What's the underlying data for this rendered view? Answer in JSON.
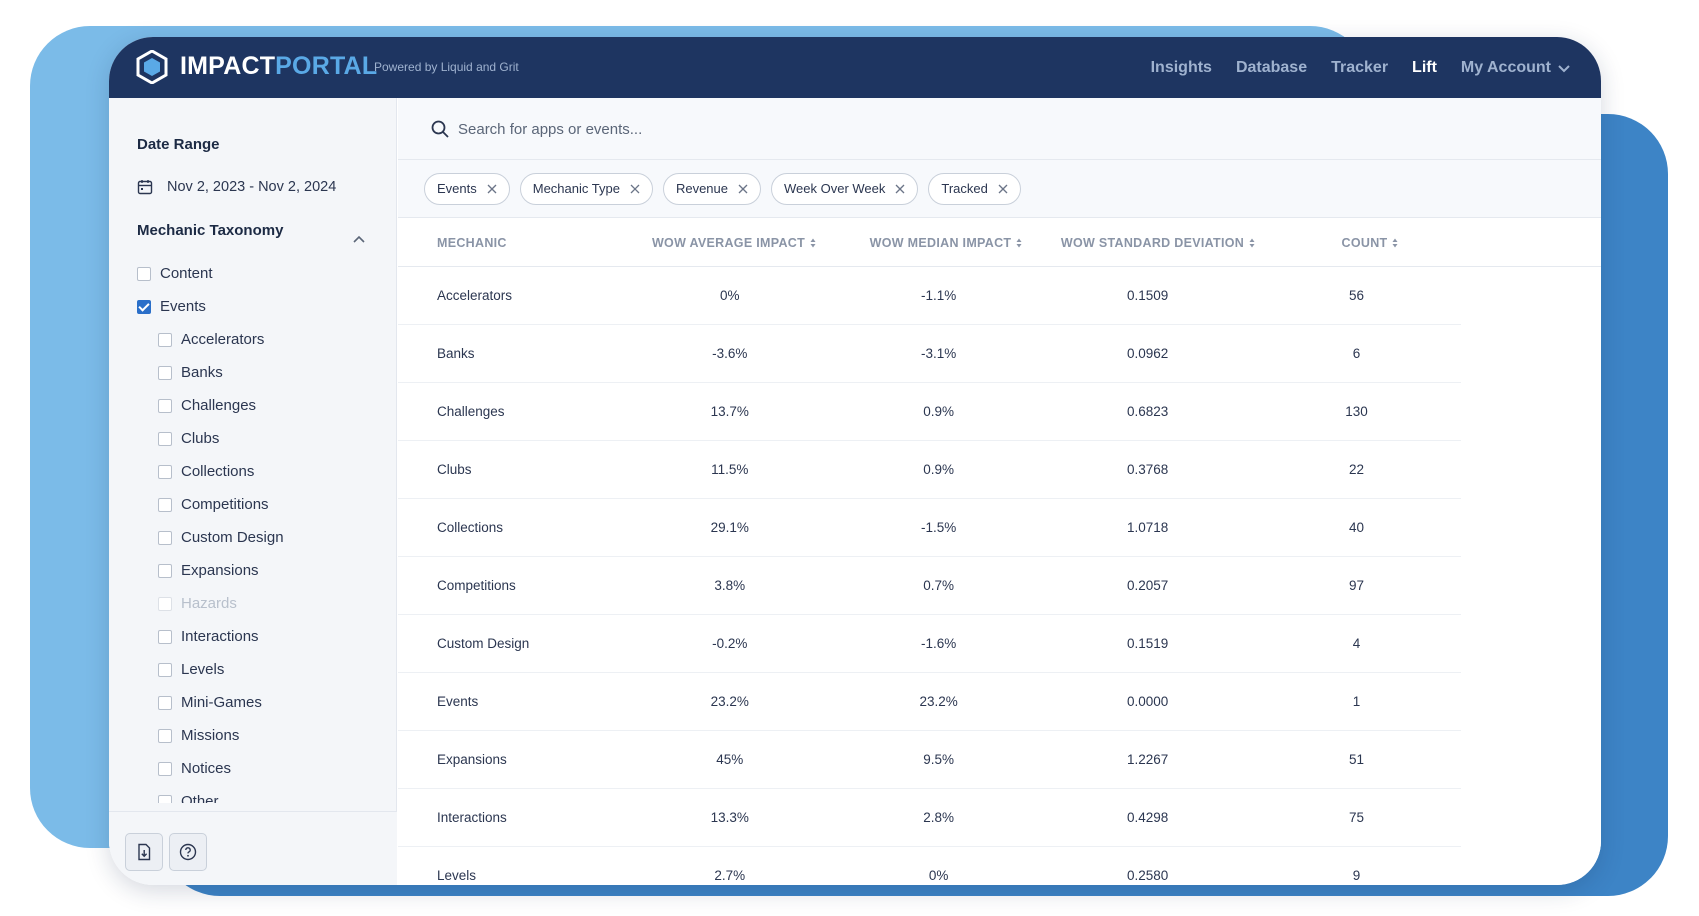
{
  "header": {
    "logo_left": "IMPACT",
    "logo_right": "PORTAL",
    "powered_by": "Powered by Liquid and Grit",
    "nav": [
      "Insights",
      "Database",
      "Tracker",
      "Lift"
    ],
    "active_nav": "Lift",
    "account_label": "My Account"
  },
  "sidebar": {
    "date_range_title": "Date Range",
    "date_range_value": "Nov 2, 2023 - Nov 2, 2024",
    "taxonomy_title": "Mechanic Taxonomy",
    "items": [
      {
        "label": "Content",
        "checked": false,
        "child": false,
        "disabled": false
      },
      {
        "label": "Events",
        "checked": true,
        "child": false,
        "disabled": false
      },
      {
        "label": "Accelerators",
        "checked": false,
        "child": true,
        "disabled": false
      },
      {
        "label": "Banks",
        "checked": false,
        "child": true,
        "disabled": false
      },
      {
        "label": "Challenges",
        "checked": false,
        "child": true,
        "disabled": false
      },
      {
        "label": "Clubs",
        "checked": false,
        "child": true,
        "disabled": false
      },
      {
        "label": "Collections",
        "checked": false,
        "child": true,
        "disabled": false
      },
      {
        "label": "Competitions",
        "checked": false,
        "child": true,
        "disabled": false
      },
      {
        "label": "Custom Design",
        "checked": false,
        "child": true,
        "disabled": false
      },
      {
        "label": "Expansions",
        "checked": false,
        "child": true,
        "disabled": false
      },
      {
        "label": "Hazards",
        "checked": false,
        "child": true,
        "disabled": true
      },
      {
        "label": "Interactions",
        "checked": false,
        "child": true,
        "disabled": false
      },
      {
        "label": "Levels",
        "checked": false,
        "child": true,
        "disabled": false
      },
      {
        "label": "Mini-Games",
        "checked": false,
        "child": true,
        "disabled": false
      },
      {
        "label": "Missions",
        "checked": false,
        "child": true,
        "disabled": false
      },
      {
        "label": "Notices",
        "checked": false,
        "child": true,
        "disabled": false
      },
      {
        "label": "Other",
        "checked": false,
        "child": true,
        "disabled": false
      }
    ]
  },
  "search": {
    "placeholder": "Search for apps or events..."
  },
  "chips": [
    "Events",
    "Mechanic Type",
    "Revenue",
    "Week Over Week",
    "Tracked"
  ],
  "table": {
    "columns": [
      "MECHANIC",
      "WOW AVERAGE IMPACT",
      "WOW MEDIAN IMPACT",
      "WOW STANDARD DEVIATION",
      "COUNT"
    ],
    "sortable": [
      false,
      true,
      true,
      true,
      true
    ],
    "rows": [
      [
        "Accelerators",
        "0%",
        "-1.1%",
        "0.1509",
        "56"
      ],
      [
        "Banks",
        "-3.6%",
        "-3.1%",
        "0.0962",
        "6"
      ],
      [
        "Challenges",
        "13.7%",
        "0.9%",
        "0.6823",
        "130"
      ],
      [
        "Clubs",
        "11.5%",
        "0.9%",
        "0.3768",
        "22"
      ],
      [
        "Collections",
        "29.1%",
        "-1.5%",
        "1.0718",
        "40"
      ],
      [
        "Competitions",
        "3.8%",
        "0.7%",
        "0.2057",
        "97"
      ],
      [
        "Custom Design",
        "-0.2%",
        "-1.6%",
        "0.1519",
        "4"
      ],
      [
        "Events",
        "23.2%",
        "23.2%",
        "0.0000",
        "1"
      ],
      [
        "Expansions",
        "45%",
        "9.5%",
        "1.2267",
        "51"
      ],
      [
        "Interactions",
        "13.3%",
        "2.8%",
        "0.4298",
        "75"
      ],
      [
        "Levels",
        "2.7%",
        "0%",
        "0.2580",
        "9"
      ]
    ]
  },
  "colors": {
    "topbar": "#1e3561",
    "accent": "#5aa9e6",
    "checkbox_checked": "#2a6fc9"
  }
}
